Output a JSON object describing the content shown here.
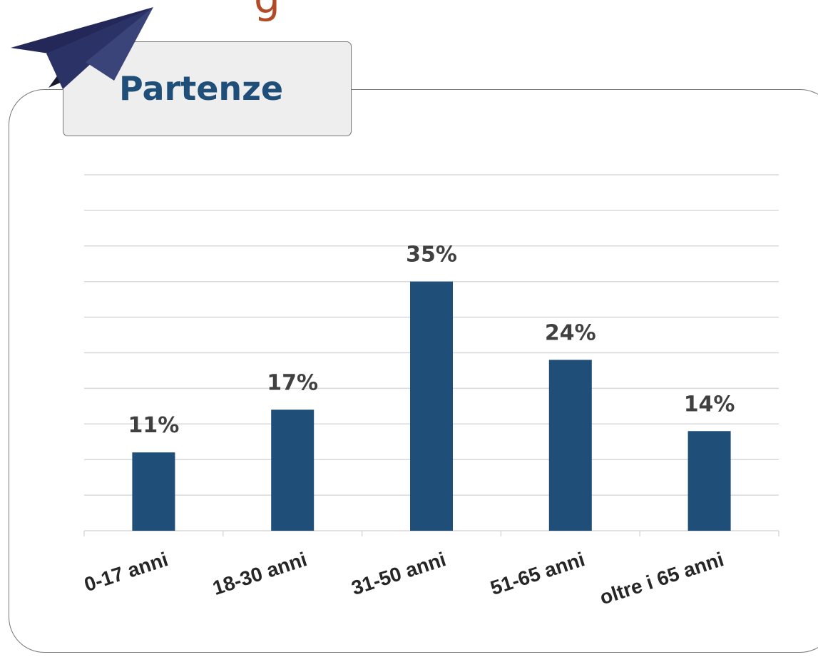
{
  "chart_data": {
    "type": "bar",
    "title": "Partenze",
    "categories": [
      "0-17 anni",
      "18-30 anni",
      "31-50 anni",
      "51-65 anni",
      "oltre i 65 anni"
    ],
    "values": [
      11,
      17,
      35,
      24,
      14
    ],
    "value_labels": [
      "11%",
      "17%",
      "35%",
      "24%",
      "14%"
    ],
    "ylim": [
      0,
      50
    ],
    "grid": true,
    "legend": "none",
    "bar_color": "#1f4e79"
  },
  "header": {
    "partial_title": "g"
  },
  "colors": {
    "header_text": "#b24a26",
    "title_text": "#1f4e79",
    "gridline": "#d9d9d9",
    "plane_dark": "#1a1a2e",
    "plane_mid": "#232858",
    "plane_light": "#3a4478"
  },
  "icons": {
    "plane": "paper-plane-icon"
  }
}
